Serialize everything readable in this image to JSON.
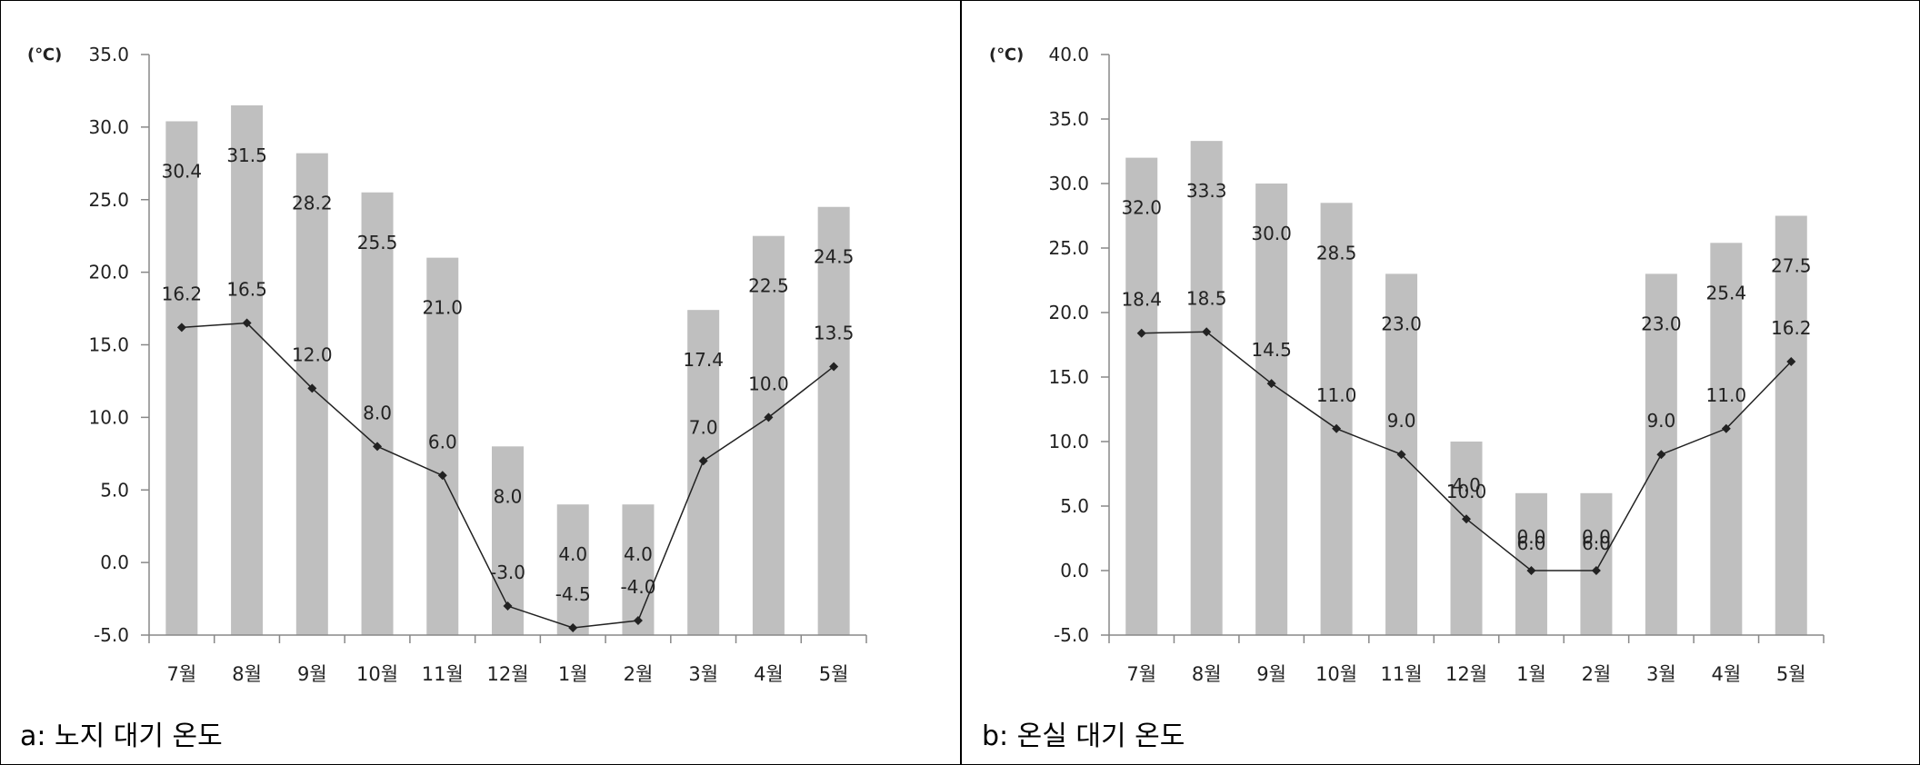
{
  "chart_data": [
    {
      "type": "bar+line",
      "caption": "a: 노지 대기 온도",
      "unit_label": "(℃)",
      "categories": [
        "7월",
        "8월",
        "9월",
        "10월",
        "11월",
        "12월",
        "1월",
        "2월",
        "3월",
        "4월",
        "5월"
      ],
      "ylim": [
        -5.0,
        35.0
      ],
      "yticks": [
        "-5.0",
        "0.0",
        "5.0",
        "10.0",
        "15.0",
        "20.0",
        "25.0",
        "30.0",
        "35.0"
      ],
      "grid": false,
      "series": [
        {
          "kind": "bar",
          "values": [
            30.4,
            31.5,
            28.2,
            25.5,
            21.0,
            8.0,
            4.0,
            4.0,
            17.4,
            22.5,
            24.5
          ],
          "labels": [
            "30.4",
            "31.5",
            "28.2",
            "25.5",
            "21.0",
            "8.0",
            "4.0",
            "4.0",
            "17.4",
            "22.5",
            "24.5"
          ],
          "color": "#bfbfbf"
        },
        {
          "kind": "line",
          "values": [
            16.2,
            16.5,
            12.0,
            8.0,
            6.0,
            -3.0,
            -4.5,
            -4.0,
            7.0,
            10.0,
            13.5
          ],
          "labels": [
            "16.2",
            "16.5",
            "12.0",
            "8.0",
            "6.0",
            "-3.0",
            "-4.5",
            "-4.0",
            "7.0",
            "10.0",
            "13.5"
          ],
          "color": "#222222"
        }
      ]
    },
    {
      "type": "bar+line",
      "caption": "b: 온실 대기 온도",
      "unit_label": "(℃)",
      "categories": [
        "7월",
        "8월",
        "9월",
        "10월",
        "11월",
        "12월",
        "1월",
        "2월",
        "3월",
        "4월",
        "5월"
      ],
      "ylim": [
        -5.0,
        40.0
      ],
      "yticks": [
        "-5.0",
        "0.0",
        "5.0",
        "10.0",
        "15.0",
        "20.0",
        "25.0",
        "30.0",
        "35.0",
        "40.0"
      ],
      "grid": false,
      "series": [
        {
          "kind": "bar",
          "values": [
            32.0,
            33.3,
            30.0,
            28.5,
            23.0,
            10.0,
            6.0,
            6.0,
            23.0,
            25.4,
            27.5
          ],
          "labels": [
            "32.0",
            "33.3",
            "30.0",
            "28.5",
            "23.0",
            "10.0",
            "6.0",
            "6.0",
            "23.0",
            "25.4",
            "27.5"
          ],
          "color": "#bfbfbf"
        },
        {
          "kind": "line",
          "values": [
            18.4,
            18.5,
            14.5,
            11.0,
            9.0,
            4.0,
            0.0,
            0.0,
            9.0,
            11.0,
            16.2
          ],
          "labels": [
            "18.4",
            "18.5",
            "14.5",
            "11.0",
            "9.0",
            "4.0",
            "0.0",
            "0.0",
            "9.0",
            "11.0",
            "16.2"
          ],
          "color": "#222222"
        }
      ]
    }
  ]
}
